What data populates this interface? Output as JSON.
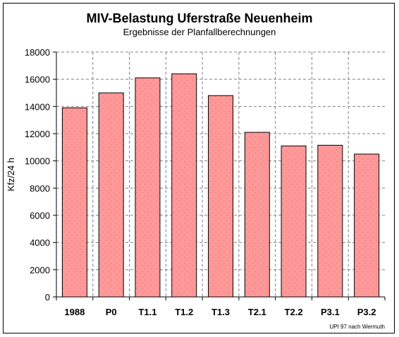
{
  "chart_data": {
    "type": "bar",
    "title": "MIV-Belastung Uferstraße Neuenheim",
    "subtitle": "Ergebnisse der Planfallberechnungen",
    "xlabel": "",
    "ylabel": "Kfz/24 h",
    "categories": [
      "1988",
      "P0",
      "T1.1",
      "T1.2",
      "T1.3",
      "T2.1",
      "T2.2",
      "P3.1",
      "P3.2"
    ],
    "values": [
      13900,
      15000,
      16100,
      16400,
      14800,
      12100,
      11100,
      11150,
      10500
    ],
    "ylim": [
      0,
      18000
    ],
    "yticks": [
      0,
      2000,
      4000,
      6000,
      8000,
      10000,
      12000,
      14000,
      16000,
      18000
    ],
    "grid": true,
    "legend": "none",
    "credit": "UPI 97 nach Wermuth",
    "colors": {
      "bar_fill": "#FF9999",
      "bar_stroke": "#000000",
      "grid": "#808080",
      "dots": "#E06060"
    }
  }
}
